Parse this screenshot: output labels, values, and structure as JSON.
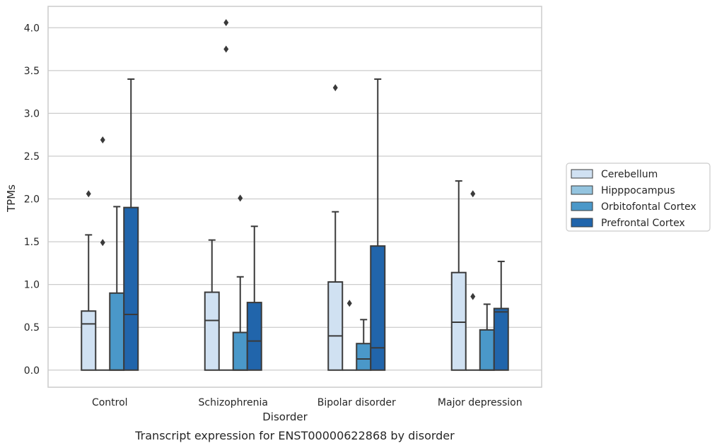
{
  "chart_data": {
    "type": "box",
    "caption": "Transcript expression for ENST00000622868 by disorder",
    "xlabel": "Disorder",
    "ylabel": "TPMs",
    "ylim": [
      -0.2,
      4.25
    ],
    "yticks": [
      0.0,
      0.5,
      1.0,
      1.5,
      2.0,
      2.5,
      3.0,
      3.5,
      4.0
    ],
    "ytick_labels": [
      "0.0",
      "0.5",
      "1.0",
      "1.5",
      "2.0",
      "2.5",
      "3.0",
      "3.5",
      "4.0"
    ],
    "grid": "horizontal",
    "legend_position": "right",
    "categories": [
      "Control",
      "Schizophrenia",
      "Bipolar disorder",
      "Major depression"
    ],
    "series": [
      {
        "name": "Cerebellum",
        "color": "#d0e1f2",
        "boxes": [
          {
            "q1": 0.0,
            "median": 0.54,
            "q3": 0.69,
            "whisker_low": 0.0,
            "whisker_high": 1.58,
            "outliers": [
              2.06
            ]
          },
          {
            "q1": 0.0,
            "median": 0.58,
            "q3": 0.91,
            "whisker_low": 0.0,
            "whisker_high": 1.52,
            "outliers": []
          },
          {
            "q1": 0.0,
            "median": 0.4,
            "q3": 1.03,
            "whisker_low": 0.0,
            "whisker_high": 1.85,
            "outliers": [
              3.3
            ]
          },
          {
            "q1": 0.0,
            "median": 0.56,
            "q3": 1.14,
            "whisker_low": 0.0,
            "whisker_high": 2.21,
            "outliers": []
          }
        ]
      },
      {
        "name": "Hipppocampus",
        "color": "#94c4df",
        "boxes": [
          {
            "q1": 0.0,
            "median": 0.0,
            "q3": 0.0,
            "whisker_low": 0.0,
            "whisker_high": 0.0,
            "outliers": [
              1.49,
              2.69
            ]
          },
          {
            "q1": 0.0,
            "median": 0.0,
            "q3": 0.0,
            "whisker_low": 0.0,
            "whisker_high": 0.0,
            "outliers": [
              4.06,
              3.75
            ]
          },
          {
            "q1": 0.0,
            "median": 0.0,
            "q3": 0.0,
            "whisker_low": 0.0,
            "whisker_high": 0.0,
            "outliers": [
              0.78
            ]
          },
          {
            "q1": 0.0,
            "median": 0.0,
            "q3": 0.0,
            "whisker_low": 0.0,
            "whisker_high": 0.0,
            "outliers": [
              0.86,
              2.06
            ]
          }
        ]
      },
      {
        "name": "Orbitofontal Cortex",
        "color": "#4a98c9",
        "boxes": [
          {
            "q1": 0.0,
            "median": 0.0,
            "q3": 0.9,
            "whisker_low": 0.0,
            "whisker_high": 1.91,
            "outliers": []
          },
          {
            "q1": 0.0,
            "median": 0.0,
            "q3": 0.44,
            "whisker_low": 0.0,
            "whisker_high": 1.09,
            "outliers": [
              2.01
            ]
          },
          {
            "q1": 0.0,
            "median": 0.13,
            "q3": 0.31,
            "whisker_low": 0.0,
            "whisker_high": 0.59,
            "outliers": []
          },
          {
            "q1": 0.0,
            "median": 0.0,
            "q3": 0.47,
            "whisker_low": 0.0,
            "whisker_high": 0.77,
            "outliers": []
          }
        ]
      },
      {
        "name": "Prefrontal Cortex",
        "color": "#2165ab",
        "boxes": [
          {
            "q1": 0.0,
            "median": 0.65,
            "q3": 1.9,
            "whisker_low": 0.0,
            "whisker_high": 3.4,
            "outliers": []
          },
          {
            "q1": 0.0,
            "median": 0.34,
            "q3": 0.79,
            "whisker_low": 0.0,
            "whisker_high": 1.68,
            "outliers": []
          },
          {
            "q1": 0.0,
            "median": 0.26,
            "q3": 1.45,
            "whisker_low": 0.0,
            "whisker_high": 3.4,
            "outliers": []
          },
          {
            "q1": 0.0,
            "median": 0.68,
            "q3": 0.72,
            "whisker_low": 0.0,
            "whisker_high": 1.27,
            "outliers": []
          }
        ]
      }
    ]
  }
}
